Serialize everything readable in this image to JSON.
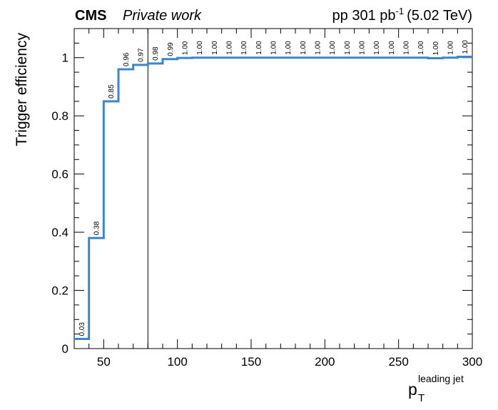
{
  "chart_data": {
    "type": "line",
    "x_bin_edges": [
      30,
      40,
      50,
      60,
      70,
      80,
      90,
      100,
      110,
      120,
      130,
      140,
      150,
      160,
      170,
      180,
      190,
      200,
      210,
      220,
      230,
      240,
      250,
      260,
      270,
      280,
      290,
      300
    ],
    "values": [
      0.033,
      0.38,
      0.85,
      0.96,
      0.975,
      0.98,
      0.995,
      0.999,
      1.0,
      1.0,
      1.0,
      1.0,
      1.0,
      1.0,
      1.0,
      1.0,
      1.0,
      1.0,
      1.0,
      1.0,
      1.0,
      1.0,
      1.0,
      1.0,
      0.998,
      1.0,
      1.003
    ],
    "bin_labels": [
      "0.03",
      "0.38",
      "0.85",
      "0.96",
      "0.97",
      "0.98",
      "0.99",
      "1.00",
      "1.00",
      "1.00",
      "1.00",
      "1.00",
      "1.00",
      "1.00",
      "1.00",
      "1.00",
      "1.00",
      "1.00",
      "1.00",
      "1.00",
      "1.00",
      "1.00",
      "1.00",
      "1.00",
      "1.00",
      "1.00",
      "1.00"
    ],
    "xlim": [
      30,
      300
    ],
    "ylim": [
      0,
      1.1
    ],
    "xticks": [
      50,
      100,
      150,
      200,
      250,
      300
    ],
    "xtick_labels": [
      "50",
      "100",
      "150",
      "200",
      "250",
      "300"
    ],
    "yticks": [
      0,
      0.2,
      0.4,
      0.6,
      0.8,
      1
    ],
    "ytick_labels": [
      "0",
      "0.2",
      "0.4",
      "0.6",
      "0.8",
      "1"
    ],
    "vertical_line_x": 80,
    "line_color": "#3a87d0",
    "ylabel": "Trigger efficiency",
    "xlabel_main": "p",
    "xlabel_sub": "T",
    "xlabel_sup": "leading jet",
    "header": {
      "experiment": "CMS",
      "status": "Private work",
      "lumi_prefix": "pp 301 pb",
      "lumi_exp": "-1",
      "energy": "(5.02 TeV)"
    },
    "grid": false
  }
}
